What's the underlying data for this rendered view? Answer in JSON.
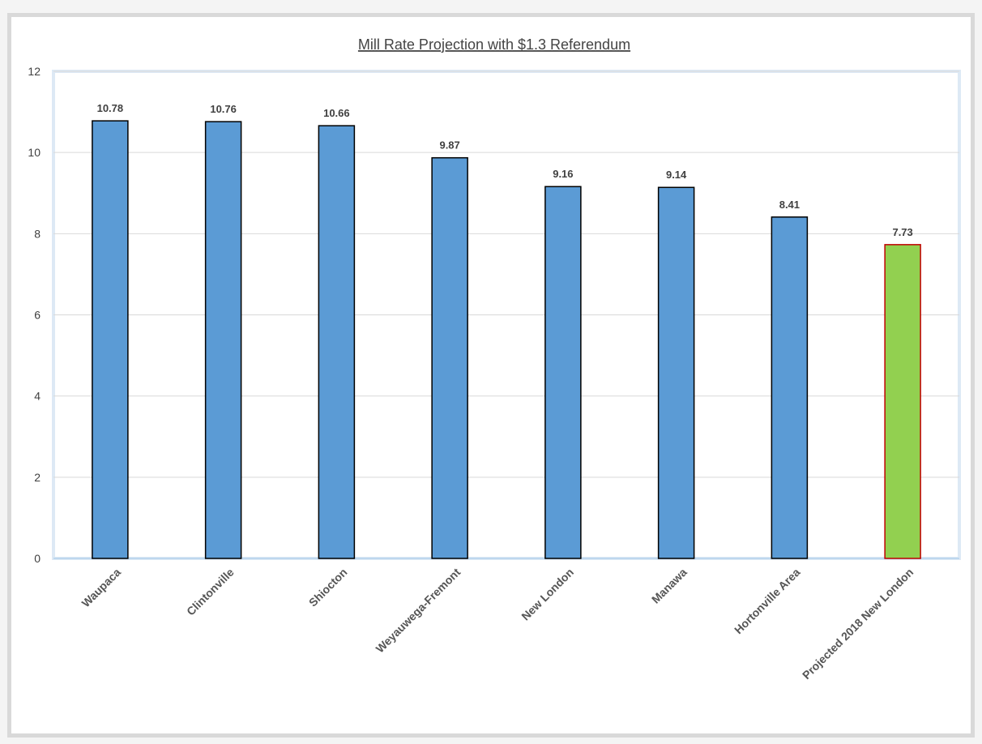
{
  "chart_data": {
    "type": "bar",
    "title": "Mill Rate Projection with $1.3 Referendum",
    "xlabel": "",
    "ylabel": "",
    "ylim": [
      0,
      12
    ],
    "yticks": [
      0,
      2,
      4,
      6,
      8,
      10,
      12
    ],
    "grid": true,
    "legend": "none",
    "categories": [
      "Waupaca",
      "Clintonville",
      "Shiocton",
      "Weyauwega-Fremont",
      "New London",
      "Manawa",
      "Hortonville Area",
      "Projected 2018 New London"
    ],
    "values": [
      10.78,
      10.76,
      10.66,
      9.87,
      9.16,
      9.14,
      8.41,
      7.73
    ],
    "data_labels": [
      "10.78",
      "10.76",
      "10.66",
      "9.87",
      "9.16",
      "9.14",
      "8.41",
      "7.73"
    ],
    "bar_colors": [
      "#5b9bd5",
      "#5b9bd5",
      "#5b9bd5",
      "#5b9bd5",
      "#5b9bd5",
      "#5b9bd5",
      "#5b9bd5",
      "#92d050"
    ],
    "bar_border_colors": [
      "#000000",
      "#000000",
      "#000000",
      "#000000",
      "#000000",
      "#000000",
      "#000000",
      "#c00000"
    ]
  }
}
